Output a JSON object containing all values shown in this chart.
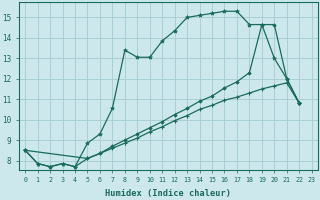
{
  "xlabel": "Humidex (Indice chaleur)",
  "bg_color": "#cce8ed",
  "grid_color": "#aacfd6",
  "line_color": "#1a6b5a",
  "xlim": [
    -0.5,
    23.5
  ],
  "ylim": [
    7.55,
    15.75
  ],
  "yticks": [
    8,
    9,
    10,
    11,
    12,
    13,
    14,
    15
  ],
  "xticks": [
    0,
    1,
    2,
    3,
    4,
    5,
    6,
    7,
    8,
    9,
    10,
    11,
    12,
    13,
    14,
    15,
    16,
    17,
    18,
    19,
    20,
    21,
    22,
    23
  ],
  "line1_x": [
    0,
    1,
    2,
    3,
    4,
    5,
    6,
    7,
    8,
    9,
    10,
    11,
    12,
    13,
    14,
    15,
    16,
    17,
    18,
    19,
    20,
    21,
    22
  ],
  "line1_y": [
    8.5,
    7.85,
    7.7,
    7.85,
    7.7,
    8.85,
    9.3,
    10.55,
    13.4,
    13.05,
    13.05,
    13.85,
    14.35,
    15.0,
    15.1,
    15.2,
    15.3,
    15.3,
    14.65,
    14.65,
    13.0,
    12.0,
    10.8
  ],
  "line2_x": [
    0,
    1,
    2,
    3,
    4,
    5,
    6,
    7,
    8,
    9,
    10,
    11,
    12,
    13,
    14,
    15,
    16,
    17,
    18,
    19,
    20,
    21,
    22
  ],
  "line2_y": [
    8.5,
    7.85,
    7.7,
    7.85,
    7.7,
    8.1,
    8.35,
    8.6,
    8.85,
    9.1,
    9.4,
    9.65,
    9.95,
    10.2,
    10.5,
    10.7,
    10.95,
    11.1,
    11.3,
    11.5,
    11.65,
    11.8,
    10.8
  ],
  "line3_x": [
    0,
    5,
    6,
    7,
    8,
    9,
    10,
    11,
    12,
    13,
    14,
    15,
    16,
    17,
    18,
    19,
    20,
    21,
    22
  ],
  "line3_y": [
    8.5,
    8.1,
    8.35,
    8.7,
    9.0,
    9.3,
    9.6,
    9.9,
    10.25,
    10.55,
    10.9,
    11.15,
    11.55,
    11.85,
    12.3,
    14.65,
    14.65,
    12.0,
    10.8
  ]
}
